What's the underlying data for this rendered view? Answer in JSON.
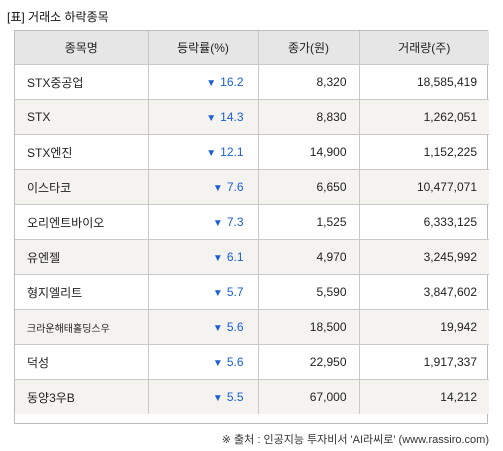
{
  "title": "[표] 거래소 하락종목",
  "table": {
    "headers": [
      "종목명",
      "등락률(%)",
      "종가(원)",
      "거래량(주)"
    ],
    "rows": [
      {
        "name": "STX중공업",
        "change": "16.2",
        "close": "8,320",
        "volume": "18,585,419"
      },
      {
        "name": "STX",
        "change": "14.3",
        "close": "8,830",
        "volume": "1,262,051"
      },
      {
        "name": "STX엔진",
        "change": "12.1",
        "close": "14,900",
        "volume": "1,152,225"
      },
      {
        "name": "이스타코",
        "change": "7.6",
        "close": "6,650",
        "volume": "10,477,071"
      },
      {
        "name": "오리엔트바이오",
        "change": "7.3",
        "close": "1,525",
        "volume": "6,333,125"
      },
      {
        "name": "유엔젤",
        "change": "6.1",
        "close": "4,970",
        "volume": "3,245,992"
      },
      {
        "name": "형지엘리트",
        "change": "5.7",
        "close": "5,590",
        "volume": "3,847,602"
      },
      {
        "name": "크라운해태홀딩스우",
        "change": "5.6",
        "close": "18,500",
        "volume": "19,942"
      },
      {
        "name": "덕성",
        "change": "5.6",
        "close": "22,950",
        "volume": "1,917,337"
      },
      {
        "name": "동양3우B",
        "change": "5.5",
        "close": "67,000",
        "volume": "14,212"
      }
    ]
  },
  "down_arrow": "▼",
  "source": "※ 출처 : 인공지능 투자비서 'AI라씨로' (www.rassiro.com)",
  "colors": {
    "header_bg": "#e6e6e6",
    "alt_row_bg": "#f4f3ef",
    "down": "#1a5fd6"
  }
}
